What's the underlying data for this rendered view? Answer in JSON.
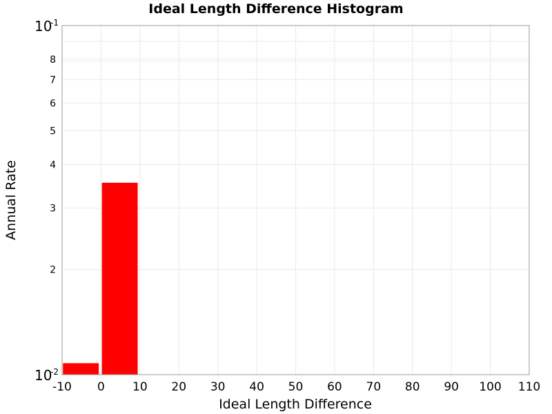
{
  "chart_data": {
    "type": "bar",
    "title": "Ideal Length Difference Histogram",
    "xlabel": "Ideal Length Difference",
    "ylabel": "Annual Rate",
    "y_scale": "log",
    "ylim": [
      0.01,
      0.1
    ],
    "xlim": [
      -10,
      110
    ],
    "grid": true,
    "legend": "none",
    "bar_color": "#ff0000",
    "bins": [
      {
        "x_start": -10,
        "x_end": 0,
        "value": 0.0108
      },
      {
        "x_start": 0,
        "x_end": 10,
        "value": 0.0355
      }
    ],
    "x_ticks": [
      "-10",
      "0",
      "10",
      "20",
      "30",
      "40",
      "50",
      "60",
      "70",
      "80",
      "90",
      "100",
      "110"
    ],
    "y_major_ticks": [
      {
        "base": "10",
        "exp": "-1",
        "value": 0.1
      },
      {
        "base": "10",
        "exp": "-2",
        "value": 0.01
      }
    ],
    "y_minor_ticks": [
      {
        "label": "8",
        "value": 0.08
      },
      {
        "label": "7",
        "value": 0.07
      },
      {
        "label": "6",
        "value": 0.06
      },
      {
        "label": "5",
        "value": 0.05
      },
      {
        "label": "4",
        "value": 0.04
      },
      {
        "label": "3",
        "value": 0.03
      },
      {
        "label": "2",
        "value": 0.02
      }
    ]
  }
}
